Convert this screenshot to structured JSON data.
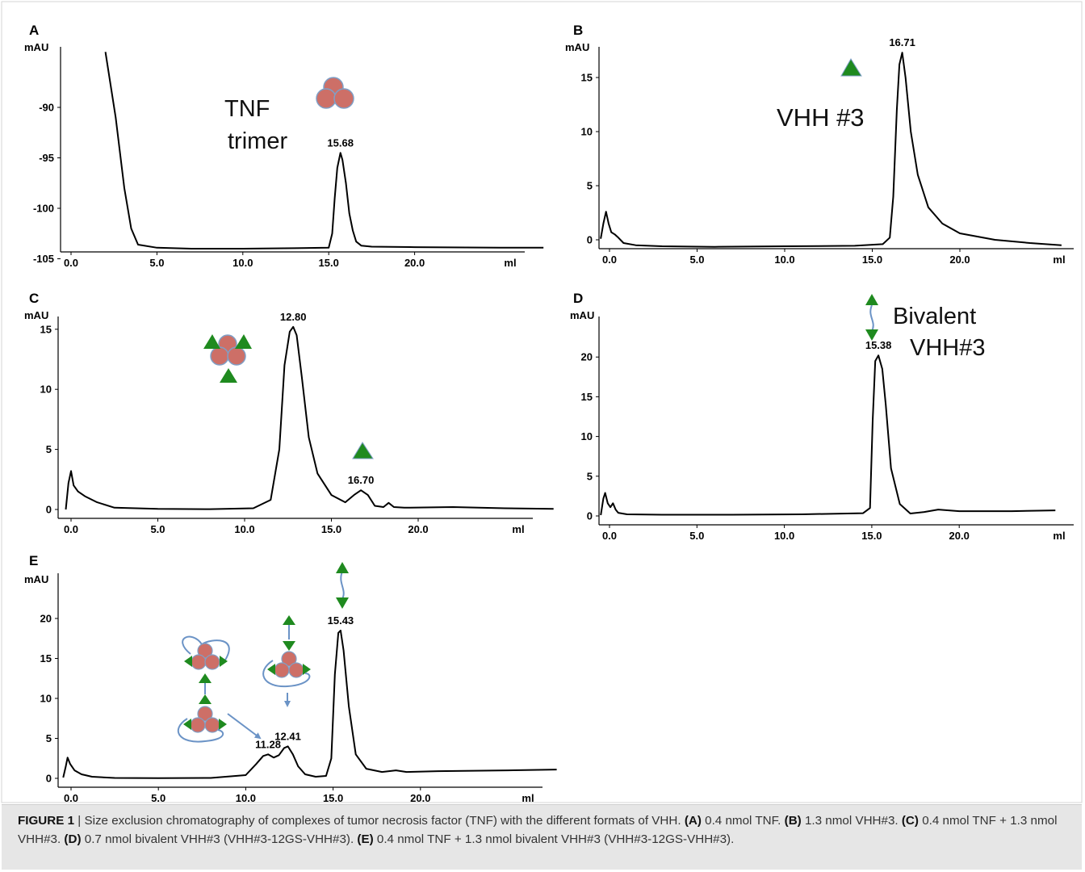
{
  "chart_data": [
    {
      "panel": "A",
      "type": "line",
      "ylabel": "mAU",
      "xunit": "ml",
      "xticks": [
        "0.0",
        "5.0",
        "10.0",
        "15.0",
        "20.0"
      ],
      "yticks": [
        "-90",
        "-95",
        "-100",
        "-105"
      ],
      "xlim": [
        -0.5,
        28
      ],
      "ylim": [
        -105.5,
        -84.5
      ],
      "series": [
        {
          "x": [
            2.0,
            2.6,
            3.1,
            3.5,
            3.9,
            5,
            7,
            10,
            13,
            15.0,
            15.2,
            15.35,
            15.5,
            15.68,
            15.8,
            16.0,
            16.2,
            16.4,
            16.6,
            16.9,
            17.5,
            20,
            25,
            27.5
          ],
          "y": [
            -84.5,
            -91,
            -98,
            -102,
            -103.6,
            -103.9,
            -104.0,
            -104.0,
            -103.95,
            -103.9,
            -102.5,
            -99,
            -96,
            -94.5,
            -95.2,
            -97.5,
            -100.5,
            -102.2,
            -103.3,
            -103.7,
            -103.8,
            -103.85,
            -103.9,
            -103.9
          ]
        }
      ],
      "peaks": [
        {
          "x": 15.68,
          "y": -94.5,
          "label": "15.68"
        }
      ],
      "annotations": [
        {
          "text": "TNF"
        },
        {
          "text": "trimer"
        }
      ]
    },
    {
      "panel": "B",
      "type": "line",
      "ylabel": "mAU",
      "xunit": "ml",
      "xticks": [
        "0.0",
        "5.0",
        "10.0",
        "15.0",
        "20.0"
      ],
      "yticks": [
        "0",
        "5",
        "10",
        "15"
      ],
      "xlim": [
        -0.5,
        26
      ],
      "ylim": [
        -1,
        18.5
      ],
      "series": [
        {
          "x": [
            -0.5,
            -0.35,
            -0.2,
            -0.05,
            0.1,
            0.3,
            0.5,
            0.8,
            1.5,
            3,
            6,
            10,
            14,
            15.6,
            16.0,
            16.2,
            16.4,
            16.55,
            16.71,
            16.9,
            17.2,
            17.6,
            18.2,
            19,
            20,
            22,
            24,
            25.8
          ],
          "y": [
            0.1,
            1.5,
            2.6,
            1.5,
            0.7,
            0.5,
            0.2,
            -0.3,
            -0.5,
            -0.6,
            -0.65,
            -0.6,
            -0.55,
            -0.4,
            0.2,
            4,
            12,
            16.2,
            17.3,
            15,
            10,
            6,
            3,
            1.5,
            0.6,
            0,
            -0.3,
            -0.5
          ]
        }
      ],
      "peaks": [
        {
          "x": 16.71,
          "y": 17.3,
          "label": "16.71"
        }
      ],
      "annotations": [
        {
          "text": "VHH #3"
        }
      ]
    },
    {
      "panel": "C",
      "type": "line",
      "ylabel": "mAU",
      "xunit": "ml",
      "xticks": [
        "0.0",
        "5.0",
        "10.0",
        "15.0",
        "20.0"
      ],
      "yticks": [
        "0",
        "5",
        "10",
        "15"
      ],
      "xlim": [
        -0.5,
        28
      ],
      "ylim": [
        -0.5,
        16.5
      ],
      "series": [
        {
          "x": [
            -0.3,
            -0.15,
            0.0,
            0.15,
            0.4,
            0.8,
            1.5,
            2.5,
            5,
            8,
            10.5,
            11.5,
            12.0,
            12.3,
            12.6,
            12.8,
            13.0,
            13.3,
            13.7,
            14.2,
            15.0,
            15.8,
            16.3,
            16.7,
            17.1,
            17.5,
            18.0,
            18.3,
            18.6,
            19.2,
            22,
            25,
            27.8
          ],
          "y": [
            0,
            2.2,
            3.2,
            2.0,
            1.5,
            1.1,
            0.6,
            0.15,
            0.05,
            0.03,
            0.1,
            0.8,
            5,
            12,
            14.8,
            15.2,
            14.5,
            11,
            6,
            3,
            1.2,
            0.6,
            1.2,
            1.6,
            1.2,
            0.3,
            0.2,
            0.55,
            0.2,
            0.15,
            0.2,
            0.1,
            0.05
          ]
        }
      ],
      "peaks": [
        {
          "x": 12.8,
          "y": 15.2,
          "label": "12.80"
        },
        {
          "x": 16.7,
          "y": 1.6,
          "label": "16.70"
        }
      ]
    },
    {
      "panel": "D",
      "type": "line",
      "ylabel": "mAU",
      "xunit": "ml",
      "xticks": [
        "0.0",
        "5.0",
        "10.0",
        "15.0",
        "20.0"
      ],
      "yticks": [
        "0",
        "5",
        "10",
        "15",
        "20"
      ],
      "xlim": [
        -0.5,
        26
      ],
      "ylim": [
        -0.5,
        25
      ],
      "series": [
        {
          "x": [
            -0.5,
            -0.35,
            -0.25,
            -0.1,
            0.05,
            0.2,
            0.35,
            0.5,
            1,
            3,
            7,
            11,
            14.5,
            14.9,
            15.05,
            15.2,
            15.38,
            15.6,
            15.8,
            16.1,
            16.6,
            17.2,
            18,
            18.8,
            20,
            23,
            25.5
          ],
          "y": [
            0.1,
            2.2,
            2.9,
            1.6,
            1.1,
            1.6,
            0.8,
            0.4,
            0.2,
            0.15,
            0.15,
            0.2,
            0.35,
            1,
            12,
            19.5,
            20.2,
            18.5,
            14,
            6,
            1.5,
            0.3,
            0.5,
            0.8,
            0.6,
            0.6,
            0.7
          ]
        }
      ],
      "peaks": [
        {
          "x": 15.38,
          "y": 20.2,
          "label": "15.38"
        }
      ],
      "annotations": [
        {
          "text": "Bivalent"
        },
        {
          "text": "VHH#3"
        }
      ]
    },
    {
      "panel": "E",
      "type": "line",
      "ylabel": "mAU",
      "xunit": "ml",
      "xticks": [
        "0.0",
        "5.0",
        "10.0",
        "15.0",
        "20.0"
      ],
      "yticks": [
        "0",
        "5",
        "10",
        "15",
        "20"
      ],
      "xlim": [
        -0.5,
        28
      ],
      "ylim": [
        -0.5,
        26
      ],
      "series": [
        {
          "x": [
            -0.45,
            -0.3,
            -0.2,
            -0.05,
            0.2,
            0.6,
            1.2,
            2.5,
            5,
            8,
            10.0,
            10.6,
            11.0,
            11.28,
            11.6,
            11.9,
            12.2,
            12.41,
            12.7,
            13.0,
            13.4,
            14.0,
            14.6,
            14.9,
            15.1,
            15.3,
            15.43,
            15.6,
            15.9,
            16.3,
            16.9,
            17.8,
            18.6,
            19.2,
            21,
            25,
            27.8
          ],
          "y": [
            0.1,
            1.5,
            2.6,
            1.8,
            1.0,
            0.5,
            0.2,
            0.05,
            0.02,
            0.05,
            0.4,
            1.8,
            2.8,
            3.0,
            2.6,
            2.9,
            3.8,
            4.0,
            3.0,
            1.5,
            0.5,
            0.2,
            0.3,
            2.5,
            13,
            18.2,
            18.5,
            16,
            9,
            3,
            1.2,
            0.8,
            1.0,
            0.8,
            0.9,
            1.0,
            1.1
          ]
        }
      ],
      "peaks": [
        {
          "x": 11.28,
          "y": 3.0,
          "label": "11.28"
        },
        {
          "x": 12.41,
          "y": 4.0,
          "label": "12.41"
        },
        {
          "x": 15.43,
          "y": 18.5,
          "label": "15.43"
        }
      ]
    }
  ],
  "caption": {
    "figure_label": "FIGURE 1",
    "separator": " | ",
    "text": "Size exclusion chromatography of complexes of tumor necrosis factor (TNF) with the different formats of VHH.",
    "parts": [
      {
        "label": "(A)",
        "text": "0.4 nmol TNF."
      },
      {
        "label": "(B)",
        "text": "1.3 nmol VHH#3."
      },
      {
        "label": "(C)",
        "text": "0.4 nmol TNF + 1.3 nmol VHH#3."
      },
      {
        "label": "(D)",
        "text": "0.7 nmol bivalent VHH#3 (VHH#3-12GS-VHH#3)."
      },
      {
        "label": "(E)",
        "text": "0.4 nmol TNF + 1.3 nmol bivalent VHH#3 (VHH#3-12GS-VHH#3)."
      }
    ]
  },
  "colors": {
    "trace": "#000000",
    "tnf": "#cd6f67",
    "tnf_outline": "#7f9fc6",
    "vhh": "#1f8a1f",
    "linker": "#6b93c6",
    "caption_bg": "#e6e6e6"
  }
}
